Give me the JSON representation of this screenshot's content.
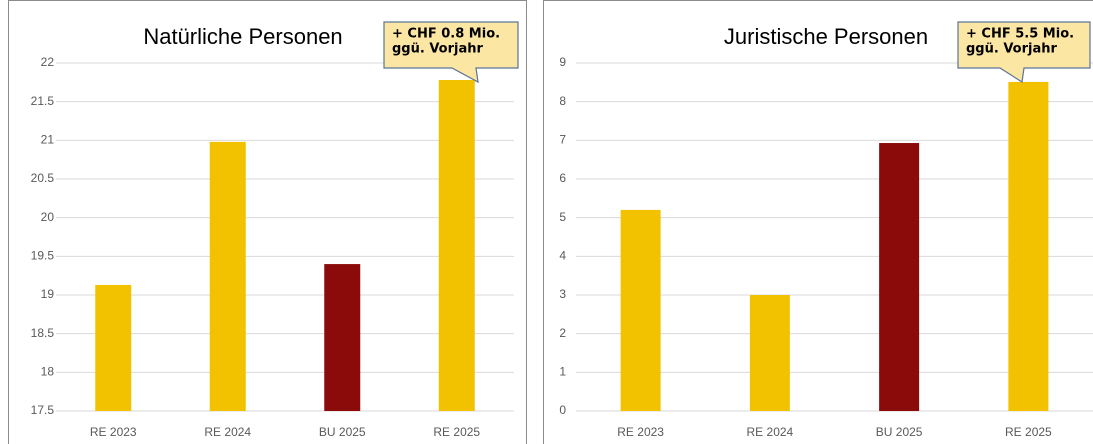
{
  "chart_data": [
    {
      "type": "bar",
      "title": "Natürliche Personen",
      "categories": [
        "RE 2023",
        "RE 2024",
        "BU 2025",
        "RE 2025"
      ],
      "values": [
        19.13,
        20.98,
        19.4,
        21.78
      ],
      "colors": [
        "#f2c200",
        "#f2c200",
        "#8b0a0a",
        "#f2c200"
      ],
      "ylim": [
        17.5,
        22
      ],
      "yticks": [
        17.5,
        18,
        18.5,
        19,
        19.5,
        20,
        20.5,
        21,
        21.5,
        22
      ],
      "grid": true,
      "annotation": [
        "+ CHF 0.8 Mio.",
        "ggü. Vorjahr"
      ]
    },
    {
      "type": "bar",
      "title": "Juristische Personen",
      "categories": [
        "RE 2023",
        "RE 2024",
        "BU 2025",
        "RE 2025"
      ],
      "values": [
        5.2,
        3.0,
        6.93,
        8.51
      ],
      "colors": [
        "#f2c200",
        "#f2c200",
        "#8b0a0a",
        "#f2c200"
      ],
      "ylim": [
        0,
        9
      ],
      "yticks": [
        0,
        1,
        2,
        3,
        4,
        5,
        6,
        7,
        8,
        9
      ],
      "grid": true,
      "annotation": [
        "+ CHF 5.5 Mio.",
        "ggü. Vorjahr"
      ]
    }
  ]
}
